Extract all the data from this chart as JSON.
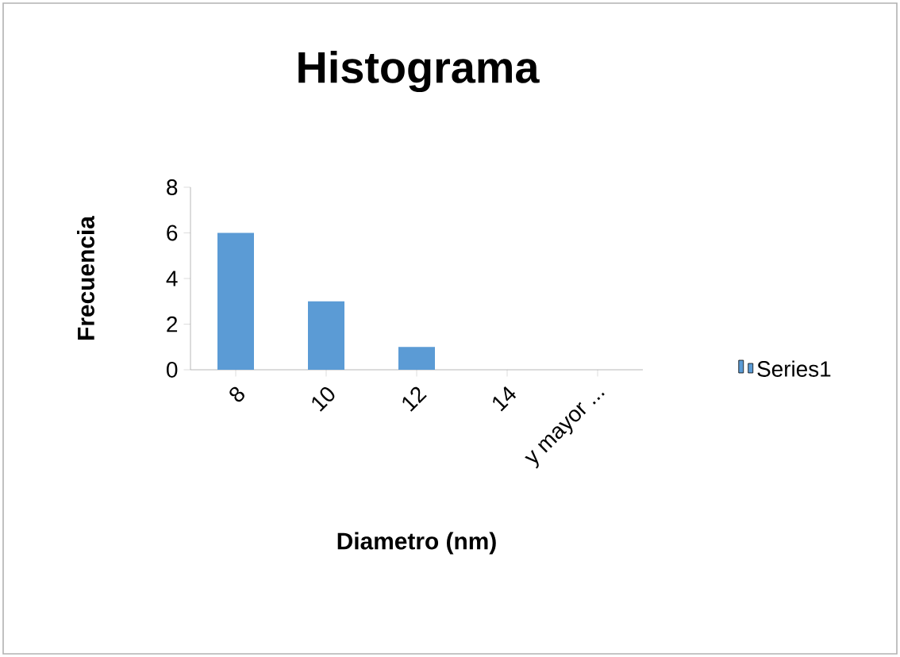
{
  "chart_data": {
    "type": "bar",
    "title": "Histograma",
    "xlabel": "Diametro (nm)",
    "ylabel": "Frecuencia",
    "categories": [
      "8",
      "10",
      "12",
      "14",
      "y mayor ..."
    ],
    "series": [
      {
        "name": "Series1",
        "color": "#5b9bd5",
        "values": [
          6,
          3,
          1,
          0,
          0
        ]
      }
    ],
    "ylim": [
      0,
      8
    ],
    "yticks": [
      0,
      2,
      4,
      6,
      8
    ],
    "grid": false,
    "legend": "right"
  }
}
